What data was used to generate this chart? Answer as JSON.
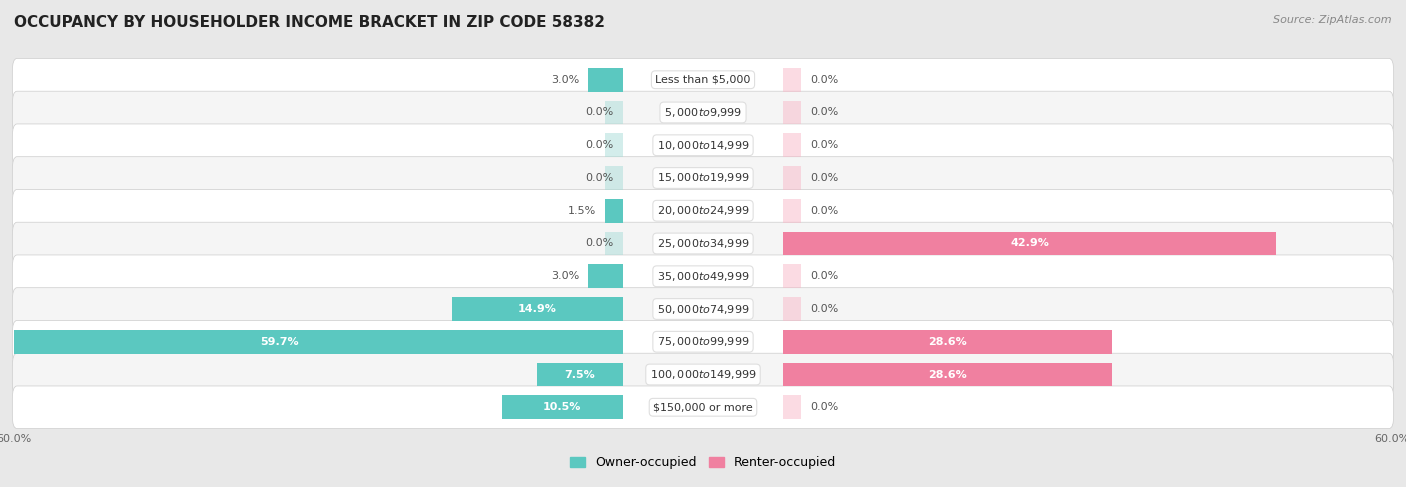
{
  "title": "OCCUPANCY BY HOUSEHOLDER INCOME BRACKET IN ZIP CODE 58382",
  "source": "Source: ZipAtlas.com",
  "categories": [
    "Less than $5,000",
    "$5,000 to $9,999",
    "$10,000 to $14,999",
    "$15,000 to $19,999",
    "$20,000 to $24,999",
    "$25,000 to $34,999",
    "$35,000 to $49,999",
    "$50,000 to $74,999",
    "$75,000 to $99,999",
    "$100,000 to $149,999",
    "$150,000 or more"
  ],
  "owner_values": [
    3.0,
    0.0,
    0.0,
    0.0,
    1.5,
    0.0,
    3.0,
    14.9,
    59.7,
    7.5,
    10.5
  ],
  "renter_values": [
    0.0,
    0.0,
    0.0,
    0.0,
    0.0,
    42.9,
    0.0,
    0.0,
    28.6,
    28.6,
    0.0
  ],
  "owner_color": "#5BC8C0",
  "renter_color": "#F080A0",
  "owner_color_light": "#A8DDD8",
  "renter_color_light": "#F8B8C8",
  "bar_height": 0.72,
  "xlim": [
    -60,
    60
  ],
  "background_color": "#e8e8e8",
  "row_bg_even": "#f5f5f5",
  "row_bg_odd": "#ffffff",
  "title_fontsize": 11,
  "label_fontsize": 8,
  "source_fontsize": 8,
  "legend_fontsize": 9,
  "category_fontsize": 8,
  "min_bar_for_inside_label": 5.0
}
